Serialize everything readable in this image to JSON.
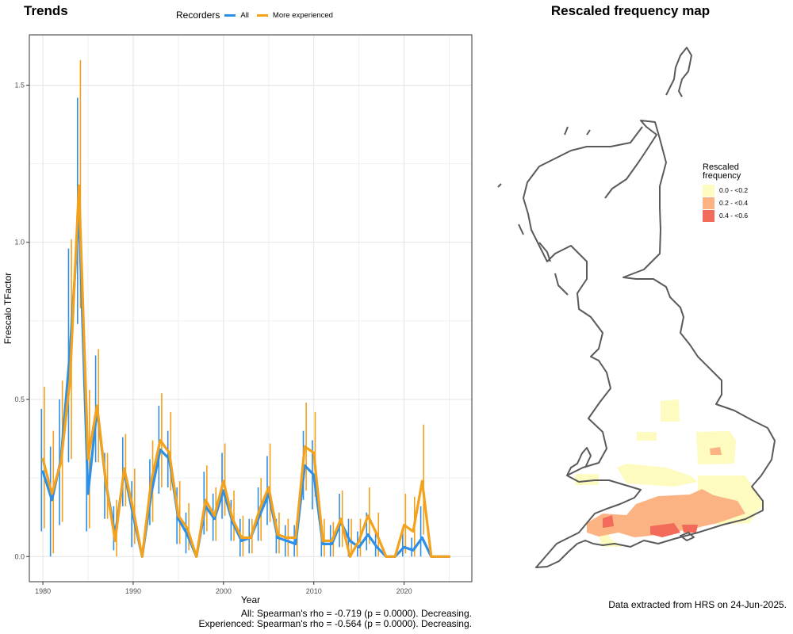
{
  "trends_title": "Trends",
  "map_title": "Rescaled frequency map",
  "legend": {
    "title": "Recorders",
    "items": [
      {
        "label": "All",
        "color": "#2e8fe6"
      },
      {
        "label": "More experienced",
        "color": "#f4a11b"
      }
    ]
  },
  "chart_data": {
    "type": "line",
    "xlabel": "Year",
    "ylabel": "Frescalo TFactor",
    "xlim": [
      1978.5,
      2027.5
    ],
    "ylim": [
      -0.08,
      1.66
    ],
    "xticks": [
      1980,
      1990,
      2000,
      2010,
      2020
    ],
    "yticks": [
      0.0,
      0.5,
      1.0,
      1.5
    ],
    "ytick_labels": [
      "0.0",
      "0.5",
      "1.0",
      "1.5"
    ],
    "grid": true,
    "x": [
      1980,
      1981,
      1982,
      1983,
      1984,
      1985,
      1986,
      1987,
      1988,
      1989,
      1990,
      1991,
      1992,
      1993,
      1994,
      1995,
      1996,
      1997,
      1998,
      1999,
      2000,
      2001,
      2002,
      2003,
      2004,
      2005,
      2006,
      2007,
      2008,
      2009,
      2010,
      2011,
      2012,
      2013,
      2014,
      2015,
      2016,
      2017,
      2018,
      2019,
      2020,
      2021,
      2022,
      2023,
      2024,
      2025
    ],
    "series": [
      {
        "name": "All",
        "color": "#2e8fe6",
        "values": [
          0.27,
          0.18,
          0.31,
          0.65,
          1.1,
          0.2,
          0.47,
          0.23,
          0.07,
          0.27,
          0.13,
          0.0,
          0.2,
          0.34,
          0.31,
          0.12,
          0.07,
          0.0,
          0.16,
          0.12,
          0.21,
          0.11,
          0.05,
          0.06,
          0.13,
          0.2,
          0.06,
          0.05,
          0.04,
          0.29,
          0.26,
          0.04,
          0.04,
          0.11,
          0.05,
          0.03,
          0.07,
          0.03,
          0.0,
          0.0,
          0.03,
          0.02,
          0.06,
          0.0,
          0.0,
          0.0
        ],
        "lower": [
          0.08,
          0.0,
          0.1,
          0.3,
          0.74,
          0.08,
          0.3,
          0.12,
          0.02,
          0.16,
          0.03,
          0.0,
          0.1,
          0.2,
          0.22,
          0.04,
          0.01,
          0.0,
          0.07,
          0.05,
          0.12,
          0.05,
          0.0,
          0.01,
          0.05,
          0.1,
          0.01,
          0.0,
          0.0,
          0.18,
          0.15,
          0.0,
          0.0,
          0.03,
          0.0,
          0.0,
          0.02,
          0.0,
          0.0,
          0.0,
          0.0,
          0.0,
          0.0,
          0.0,
          0.0,
          0.0
        ],
        "upper": [
          0.47,
          0.35,
          0.5,
          0.98,
          1.46,
          0.32,
          0.64,
          0.33,
          0.16,
          0.38,
          0.24,
          0.0,
          0.31,
          0.48,
          0.4,
          0.22,
          0.14,
          0.0,
          0.27,
          0.2,
          0.33,
          0.18,
          0.12,
          0.12,
          0.22,
          0.32,
          0.12,
          0.1,
          0.1,
          0.4,
          0.37,
          0.1,
          0.1,
          0.2,
          0.12,
          0.08,
          0.14,
          0.08,
          0.0,
          0.0,
          0.08,
          0.06,
          0.16,
          0.0,
          0.0,
          0.0
        ]
      },
      {
        "name": "More experienced",
        "color": "#f4a11b",
        "values": [
          0.31,
          0.2,
          0.3,
          0.56,
          1.18,
          0.31,
          0.48,
          0.23,
          0.05,
          0.28,
          0.15,
          0.0,
          0.24,
          0.37,
          0.33,
          0.13,
          0.09,
          0.0,
          0.18,
          0.13,
          0.24,
          0.12,
          0.06,
          0.06,
          0.15,
          0.22,
          0.07,
          0.06,
          0.06,
          0.35,
          0.33,
          0.05,
          0.05,
          0.12,
          0.0,
          0.05,
          0.13,
          0.07,
          0.0,
          0.0,
          0.1,
          0.08,
          0.24,
          0.0,
          0.0,
          0.0
        ],
        "lower": [
          0.09,
          0.01,
          0.11,
          0.31,
          0.79,
          0.09,
          0.3,
          0.12,
          0.0,
          0.16,
          0.04,
          0.0,
          0.11,
          0.22,
          0.21,
          0.04,
          0.02,
          0.0,
          0.08,
          0.05,
          0.13,
          0.05,
          0.0,
          0.01,
          0.05,
          0.11,
          0.01,
          0.0,
          0.0,
          0.21,
          0.19,
          0.0,
          0.0,
          0.03,
          0.0,
          0.0,
          0.04,
          0.0,
          0.0,
          0.0,
          0.01,
          0.0,
          0.07,
          0.0,
          0.0,
          0.0
        ],
        "upper": [
          0.54,
          0.4,
          0.56,
          1.01,
          1.58,
          0.53,
          0.66,
          0.33,
          0.18,
          0.39,
          0.28,
          0.0,
          0.37,
          0.52,
          0.46,
          0.24,
          0.17,
          0.0,
          0.29,
          0.22,
          0.36,
          0.21,
          0.13,
          0.12,
          0.25,
          0.36,
          0.14,
          0.12,
          0.12,
          0.49,
          0.46,
          0.12,
          0.11,
          0.21,
          0.12,
          0.12,
          0.22,
          0.14,
          0.0,
          0.0,
          0.2,
          0.19,
          0.42,
          0.0,
          0.0,
          0.0
        ]
      }
    ]
  },
  "stats": [
    "All: Spearman's rho = -0.719 (p = 0.0000). Decreasing.",
    "Experienced: Spearman's rho = -0.564 (p = 0.0000). Decreasing."
  ],
  "map_legend": {
    "title_line1": "Rescaled",
    "title_line2": "frequency",
    "items": [
      {
        "label": "0.0 - <0.2",
        "color": "#fdfbc0"
      },
      {
        "label": "0.2 - <0.4",
        "color": "#fbb383"
      },
      {
        "label": "0.4 - <0.6",
        "color": "#f26b5a"
      }
    ]
  },
  "credit": "Data extracted from HRS on 24-Jun-2025."
}
